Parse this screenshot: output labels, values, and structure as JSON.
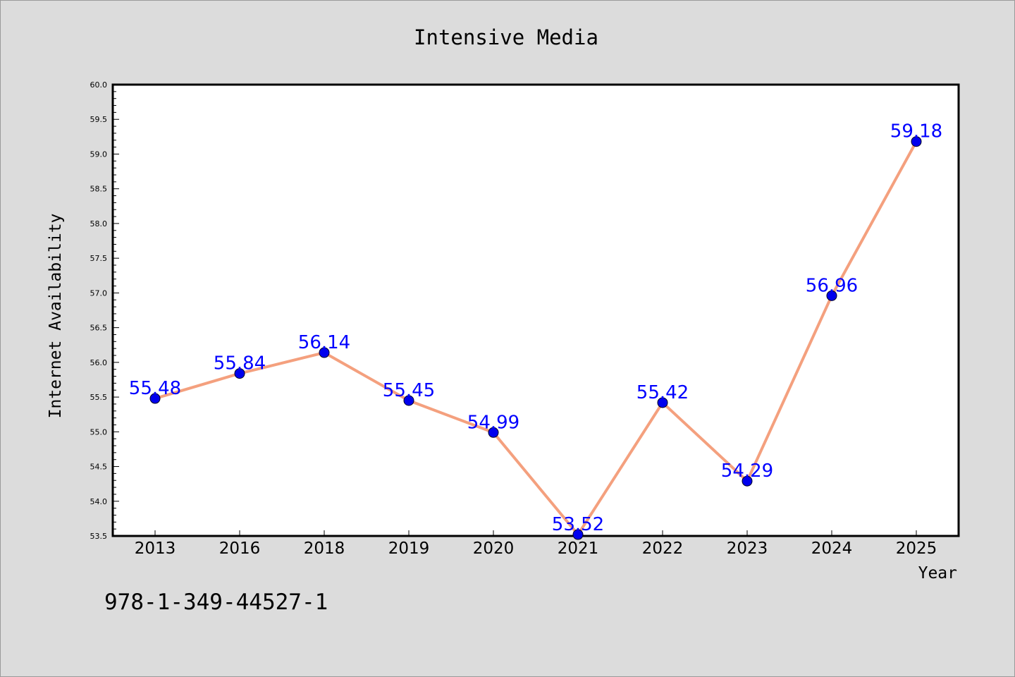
{
  "chart_data": {
    "type": "line",
    "title": "Intensive Media",
    "xlabel": "Year",
    "ylabel": "Internet Availability",
    "categories": [
      "2013",
      "2016",
      "2018",
      "2019",
      "2020",
      "2021",
      "2022",
      "2023",
      "2024",
      "2025"
    ],
    "series": [
      {
        "values": [
          55.48,
          55.84,
          56.14,
          55.45,
          54.99,
          53.52,
          55.42,
          54.29,
          56.96,
          59.18
        ]
      }
    ],
    "data_labels": [
      "55.48",
      "55.84",
      "56.14",
      "55.45",
      "54.99",
      "53.52",
      "55.42",
      "54.29",
      "56.96",
      "59.18"
    ],
    "ylim": [
      53.5,
      60.0
    ],
    "yticks": [
      "53.5",
      "54.0",
      "54.5",
      "55.0",
      "55.5",
      "56.0",
      "56.5",
      "57.0",
      "57.5",
      "58.0",
      "58.5",
      "59.0",
      "59.5",
      "60.0"
    ],
    "grid": false,
    "line_color": "#f4a07e",
    "marker_color": "#0000ee",
    "label_color": "#0000ff",
    "background": "#dcdcdc",
    "plot_background": "#ffffff"
  },
  "footer": {
    "identifier": "978-1-349-44527-1"
  }
}
